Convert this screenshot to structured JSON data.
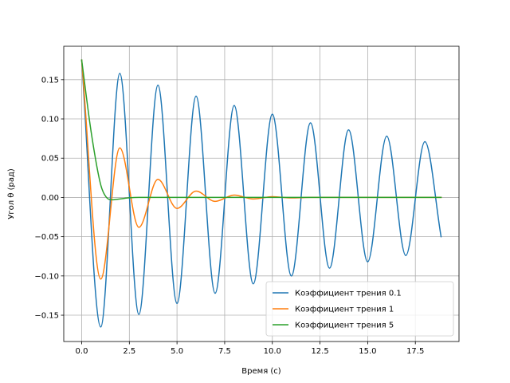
{
  "chart_data": {
    "type": "line",
    "title": "",
    "xlabel": "Время (с)",
    "ylabel": "Угол θ (рад)",
    "xlim": [
      -0.94,
      19.79
    ],
    "ylim": [
      -0.1835,
      0.1925
    ],
    "xticks": [
      0.0,
      2.5,
      5.0,
      7.5,
      10.0,
      12.5,
      15.0,
      17.5
    ],
    "xtick_labels": [
      "0.0",
      "2.5",
      "5.0",
      "7.5",
      "10.0",
      "12.5",
      "15.0",
      "17.5"
    ],
    "yticks": [
      -0.15,
      -0.1,
      -0.05,
      0.0,
      0.05,
      0.1,
      0.15
    ],
    "ytick_labels": [
      "−0.15",
      "−0.10",
      "−0.05",
      "0.00",
      "0.05",
      "0.10",
      "0.15"
    ],
    "grid": true,
    "legend_position": "bottom-right",
    "series": [
      {
        "name": "Коэффициент трения 0.1",
        "color": "#1f77b4",
        "x": [
          0.0,
          1.0,
          2.0,
          3.0,
          4.0,
          5.0,
          6.0,
          7.0,
          8.0,
          9.0,
          10.0,
          11.0,
          12.0,
          13.0,
          14.0,
          15.0,
          16.0,
          17.0,
          18.0,
          18.85
        ],
        "y": [
          0.175,
          -0.165,
          0.158,
          -0.149,
          0.143,
          -0.135,
          0.129,
          -0.122,
          0.117,
          -0.11,
          0.106,
          -0.1,
          0.095,
          -0.09,
          0.086,
          -0.082,
          0.078,
          -0.074,
          0.071,
          -0.05
        ]
      },
      {
        "name": "Коэффициент трения 1",
        "color": "#ff7f0e",
        "x": [
          0.0,
          1.0,
          2.0,
          3.0,
          4.0,
          5.0,
          6.0,
          7.0,
          8.0,
          9.0,
          10.0,
          11.0,
          12.0,
          18.85
        ],
        "y": [
          0.175,
          -0.104,
          0.063,
          -0.038,
          0.023,
          -0.014,
          0.008,
          -0.005,
          0.003,
          -0.002,
          0.001,
          -0.0006,
          0.0,
          0.0
        ]
      },
      {
        "name": "Коэффициент трения 5",
        "color": "#2ca02c",
        "x": [
          0.0,
          0.5,
          1.0,
          1.3,
          1.6,
          2.0,
          2.5,
          3.0,
          18.85
        ],
        "y": [
          0.175,
          0.083,
          0.016,
          0.0,
          -0.003,
          -0.002,
          -0.0005,
          0.0,
          0.0
        ]
      }
    ]
  }
}
